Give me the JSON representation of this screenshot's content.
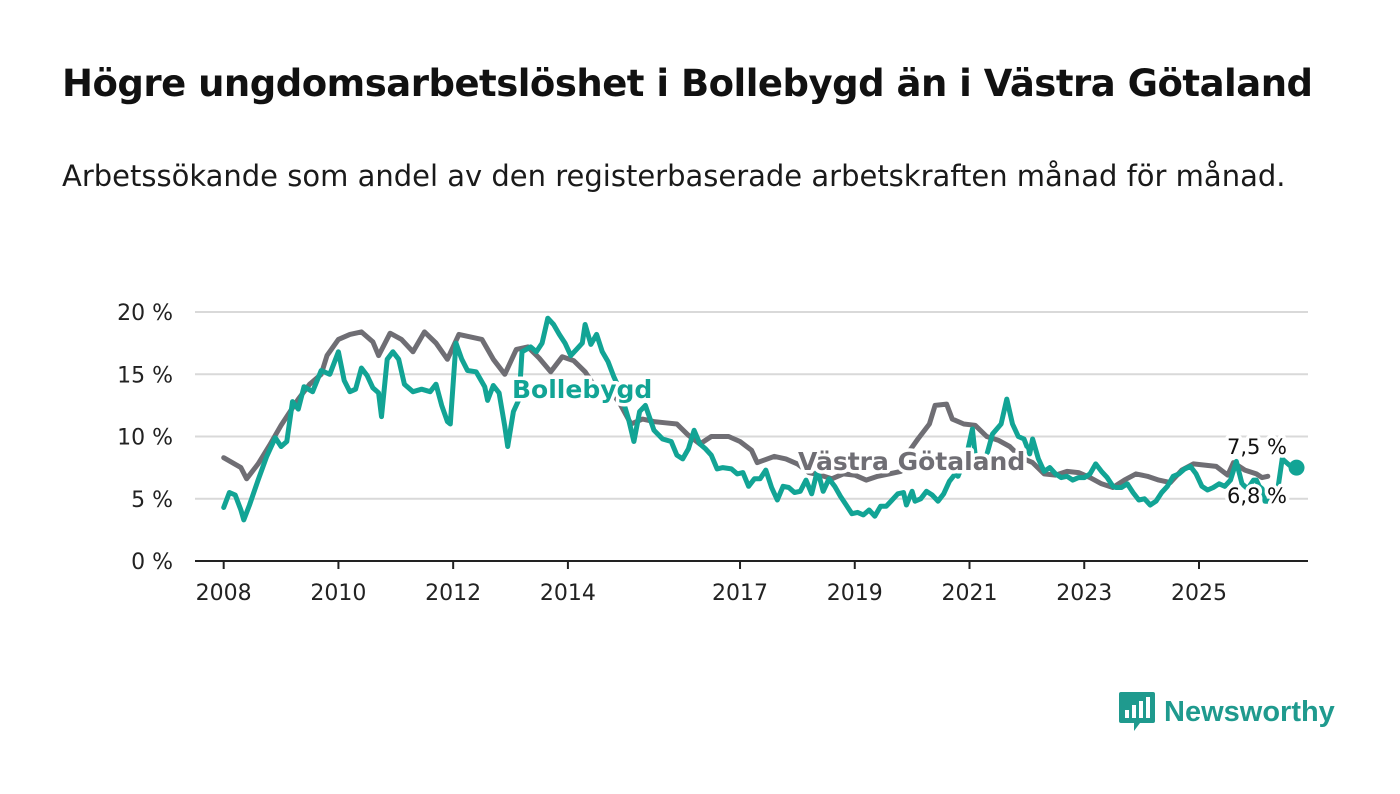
{
  "title": "Högre ungdomsarbetslöshet i Bollebygd än i Västra Götaland",
  "subtitle": "Arbetssökande som andel av den registerbaserade arbetskraften månad för månad.",
  "brand": "Newsworthy",
  "colors": {
    "bollebygd": "#12a495",
    "region": "#6f6e74",
    "grid": "#d9d9d9",
    "brand": "#1f9a8e"
  },
  "chart_data": {
    "type": "line",
    "title": "Högre ungdomsarbetslöshet i Bollebygd än i Västra Götaland",
    "xlabel": "",
    "ylabel": "",
    "xlim": [
      2007.5,
      2026.9
    ],
    "ylim": [
      0,
      20
    ],
    "y_ticks": [
      0,
      5,
      10,
      15,
      20
    ],
    "y_tick_labels": [
      "0 %",
      "5 %",
      "10 %",
      "15 %",
      "20 %"
    ],
    "x_ticks": [
      2008,
      2010,
      2012,
      2014,
      2017,
      2019,
      2021,
      2023,
      2025
    ],
    "x_tick_labels": [
      "2008",
      "2010",
      "2012",
      "2014",
      "2017",
      "2019",
      "2021",
      "2023",
      "2025"
    ],
    "series": [
      {
        "name": "Västra Götaland",
        "end_label": "6,8 %",
        "points": [
          [
            2008.0,
            8.3
          ],
          [
            2008.3,
            7.5
          ],
          [
            2008.4,
            6.6
          ],
          [
            2008.6,
            7.8
          ],
          [
            2008.8,
            9.3
          ],
          [
            2009.0,
            10.9
          ],
          [
            2009.3,
            13.0
          ],
          [
            2009.5,
            14.2
          ],
          [
            2009.7,
            15.0
          ],
          [
            2009.8,
            16.5
          ],
          [
            2010.0,
            17.8
          ],
          [
            2010.2,
            18.2
          ],
          [
            2010.4,
            18.4
          ],
          [
            2010.6,
            17.6
          ],
          [
            2010.7,
            16.5
          ],
          [
            2010.9,
            18.3
          ],
          [
            2011.1,
            17.8
          ],
          [
            2011.3,
            16.8
          ],
          [
            2011.5,
            18.4
          ],
          [
            2011.7,
            17.5
          ],
          [
            2011.9,
            16.2
          ],
          [
            2012.1,
            18.2
          ],
          [
            2012.3,
            18.0
          ],
          [
            2012.5,
            17.8
          ],
          [
            2012.7,
            16.2
          ],
          [
            2012.9,
            15.0
          ],
          [
            2013.1,
            17.0
          ],
          [
            2013.3,
            17.2
          ],
          [
            2013.5,
            16.3
          ],
          [
            2013.7,
            15.2
          ],
          [
            2013.9,
            16.4
          ],
          [
            2014.1,
            16.1
          ],
          [
            2014.3,
            15.2
          ],
          [
            2014.5,
            13.8
          ],
          [
            2014.7,
            13.9
          ],
          [
            2014.9,
            12.7
          ],
          [
            2015.1,
            11.0
          ],
          [
            2015.3,
            11.4
          ],
          [
            2015.5,
            11.2
          ],
          [
            2015.7,
            11.1
          ],
          [
            2015.9,
            11.0
          ],
          [
            2016.1,
            10.1
          ],
          [
            2016.3,
            9.4
          ],
          [
            2016.5,
            10.0
          ],
          [
            2016.8,
            10.0
          ],
          [
            2017.0,
            9.6
          ],
          [
            2017.2,
            8.9
          ],
          [
            2017.3,
            7.9
          ],
          [
            2017.6,
            8.4
          ],
          [
            2017.8,
            8.2
          ],
          [
            2018.0,
            7.8
          ],
          [
            2018.2,
            7.1
          ],
          [
            2018.4,
            6.9
          ],
          [
            2018.6,
            6.6
          ],
          [
            2018.8,
            7.0
          ],
          [
            2019.0,
            6.9
          ],
          [
            2019.2,
            6.5
          ],
          [
            2019.4,
            6.8
          ],
          [
            2019.6,
            7.0
          ],
          [
            2019.8,
            7.2
          ],
          [
            2019.9,
            8.5
          ],
          [
            2020.1,
            9.8
          ],
          [
            2020.3,
            11.0
          ],
          [
            2020.4,
            12.5
          ],
          [
            2020.6,
            12.6
          ],
          [
            2020.7,
            11.4
          ],
          [
            2020.9,
            11.0
          ],
          [
            2021.1,
            10.9
          ],
          [
            2021.3,
            10.0
          ],
          [
            2021.5,
            9.7
          ],
          [
            2021.7,
            9.2
          ],
          [
            2021.9,
            8.3
          ],
          [
            2022.1,
            7.9
          ],
          [
            2022.3,
            7.0
          ],
          [
            2022.5,
            6.9
          ],
          [
            2022.7,
            7.2
          ],
          [
            2022.9,
            7.1
          ],
          [
            2023.1,
            6.7
          ],
          [
            2023.3,
            6.2
          ],
          [
            2023.5,
            5.9
          ],
          [
            2023.7,
            6.5
          ],
          [
            2023.9,
            7.0
          ],
          [
            2024.1,
            6.8
          ],
          [
            2024.3,
            6.5
          ],
          [
            2024.5,
            6.3
          ],
          [
            2024.7,
            7.3
          ],
          [
            2024.9,
            7.8
          ],
          [
            2025.1,
            7.7
          ],
          [
            2025.3,
            7.6
          ],
          [
            2025.5,
            6.9
          ],
          [
            2025.6,
            7.9
          ],
          [
            2025.8,
            7.3
          ],
          [
            2026.0,
            7.0
          ],
          [
            2026.1,
            6.7
          ],
          [
            2026.2,
            6.8
          ]
        ]
      },
      {
        "name": "Bollebygd",
        "end_label": "7,5 %",
        "points": [
          [
            2008.0,
            4.3
          ],
          [
            2008.1,
            5.5
          ],
          [
            2008.2,
            5.3
          ],
          [
            2008.3,
            4.1
          ],
          [
            2008.35,
            3.3
          ],
          [
            2008.45,
            4.5
          ],
          [
            2008.6,
            6.5
          ],
          [
            2008.75,
            8.4
          ],
          [
            2008.9,
            9.9
          ],
          [
            2009.0,
            9.2
          ],
          [
            2009.1,
            9.6
          ],
          [
            2009.2,
            12.8
          ],
          [
            2009.3,
            12.2
          ],
          [
            2009.4,
            14.0
          ],
          [
            2009.55,
            13.6
          ],
          [
            2009.7,
            15.3
          ],
          [
            2009.85,
            15.0
          ],
          [
            2010.0,
            16.8
          ],
          [
            2010.1,
            14.5
          ],
          [
            2010.2,
            13.6
          ],
          [
            2010.3,
            13.8
          ],
          [
            2010.4,
            15.5
          ],
          [
            2010.5,
            14.9
          ],
          [
            2010.6,
            13.9
          ],
          [
            2010.7,
            13.5
          ],
          [
            2010.75,
            11.6
          ],
          [
            2010.85,
            16.2
          ],
          [
            2010.95,
            16.8
          ],
          [
            2011.05,
            16.2
          ],
          [
            2011.15,
            14.2
          ],
          [
            2011.3,
            13.6
          ],
          [
            2011.45,
            13.8
          ],
          [
            2011.6,
            13.6
          ],
          [
            2011.7,
            14.2
          ],
          [
            2011.8,
            12.5
          ],
          [
            2011.9,
            11.2
          ],
          [
            2011.95,
            11.0
          ],
          [
            2012.05,
            17.5
          ],
          [
            2012.15,
            16.2
          ],
          [
            2012.25,
            15.3
          ],
          [
            2012.4,
            15.2
          ],
          [
            2012.55,
            14.0
          ],
          [
            2012.6,
            12.9
          ],
          [
            2012.7,
            14.1
          ],
          [
            2012.8,
            13.5
          ],
          [
            2012.9,
            10.8
          ],
          [
            2012.95,
            9.2
          ],
          [
            2013.05,
            12.0
          ],
          [
            2013.15,
            13.0
          ],
          [
            2013.2,
            16.8
          ],
          [
            2013.35,
            17.2
          ],
          [
            2013.45,
            16.8
          ],
          [
            2013.55,
            17.5
          ],
          [
            2013.65,
            19.5
          ],
          [
            2013.75,
            19.0
          ],
          [
            2013.85,
            18.2
          ],
          [
            2013.95,
            17.5
          ],
          [
            2014.05,
            16.5
          ],
          [
            2014.15,
            17.0
          ],
          [
            2014.25,
            17.5
          ],
          [
            2014.3,
            19.0
          ],
          [
            2014.4,
            17.4
          ],
          [
            2014.5,
            18.2
          ],
          [
            2014.6,
            16.8
          ],
          [
            2014.7,
            16.0
          ],
          [
            2014.8,
            14.8
          ],
          [
            2014.9,
            13.8
          ],
          [
            2015.05,
            11.5
          ],
          [
            2015.15,
            9.6
          ],
          [
            2015.25,
            12.0
          ],
          [
            2015.35,
            12.5
          ],
          [
            2015.5,
            10.5
          ],
          [
            2015.65,
            9.8
          ],
          [
            2015.8,
            9.6
          ],
          [
            2015.9,
            8.5
          ],
          [
            2016.0,
            8.2
          ],
          [
            2016.1,
            9.0
          ],
          [
            2016.2,
            10.5
          ],
          [
            2016.3,
            9.4
          ],
          [
            2016.4,
            9.0
          ],
          [
            2016.5,
            8.5
          ],
          [
            2016.6,
            7.4
          ],
          [
            2016.7,
            7.5
          ],
          [
            2016.85,
            7.4
          ],
          [
            2016.95,
            7.0
          ],
          [
            2017.05,
            7.1
          ],
          [
            2017.15,
            6.0
          ],
          [
            2017.25,
            6.6
          ],
          [
            2017.35,
            6.6
          ],
          [
            2017.45,
            7.3
          ],
          [
            2017.55,
            5.9
          ],
          [
            2017.65,
            4.9
          ],
          [
            2017.75,
            6.0
          ],
          [
            2017.85,
            5.9
          ],
          [
            2017.95,
            5.5
          ],
          [
            2018.05,
            5.6
          ],
          [
            2018.15,
            6.5
          ],
          [
            2018.25,
            5.4
          ],
          [
            2018.35,
            7.3
          ],
          [
            2018.45,
            5.6
          ],
          [
            2018.55,
            6.6
          ],
          [
            2018.65,
            6.0
          ],
          [
            2018.75,
            5.2
          ],
          [
            2018.85,
            4.5
          ],
          [
            2018.95,
            3.8
          ],
          [
            2019.05,
            3.9
          ],
          [
            2019.15,
            3.7
          ],
          [
            2019.25,
            4.1
          ],
          [
            2019.35,
            3.6
          ],
          [
            2019.45,
            4.4
          ],
          [
            2019.55,
            4.4
          ],
          [
            2019.65,
            4.9
          ],
          [
            2019.75,
            5.4
          ],
          [
            2019.85,
            5.5
          ],
          [
            2019.9,
            4.5
          ],
          [
            2020.0,
            5.6
          ],
          [
            2020.05,
            4.8
          ],
          [
            2020.15,
            5.0
          ],
          [
            2020.25,
            5.6
          ],
          [
            2020.35,
            5.3
          ],
          [
            2020.45,
            4.8
          ],
          [
            2020.55,
            5.4
          ],
          [
            2020.65,
            6.4
          ],
          [
            2020.75,
            7.0
          ],
          [
            2020.8,
            6.8
          ],
          [
            2020.95,
            8.5
          ],
          [
            2021.05,
            10.6
          ],
          [
            2021.1,
            8.5
          ],
          [
            2021.2,
            7.8
          ],
          [
            2021.3,
            8.5
          ],
          [
            2021.4,
            10.2
          ],
          [
            2021.55,
            11.0
          ],
          [
            2021.65,
            13.0
          ],
          [
            2021.75,
            11.0
          ],
          [
            2021.85,
            10.0
          ],
          [
            2021.95,
            9.8
          ],
          [
            2022.05,
            8.6
          ],
          [
            2022.1,
            9.8
          ],
          [
            2022.2,
            8.2
          ],
          [
            2022.3,
            7.2
          ],
          [
            2022.4,
            7.5
          ],
          [
            2022.5,
            7.0
          ],
          [
            2022.6,
            6.7
          ],
          [
            2022.7,
            6.8
          ],
          [
            2022.8,
            6.5
          ],
          [
            2022.9,
            6.7
          ],
          [
            2023.0,
            6.7
          ],
          [
            2023.1,
            7.0
          ],
          [
            2023.2,
            7.8
          ],
          [
            2023.3,
            7.2
          ],
          [
            2023.4,
            6.7
          ],
          [
            2023.5,
            6.0
          ],
          [
            2023.55,
            5.9
          ],
          [
            2023.65,
            5.9
          ],
          [
            2023.75,
            6.2
          ],
          [
            2023.85,
            5.5
          ],
          [
            2023.95,
            4.9
          ],
          [
            2024.05,
            5.0
          ],
          [
            2024.15,
            4.5
          ],
          [
            2024.25,
            4.8
          ],
          [
            2024.35,
            5.5
          ],
          [
            2024.45,
            6.0
          ],
          [
            2024.55,
            6.8
          ],
          [
            2024.65,
            7.0
          ],
          [
            2024.75,
            7.4
          ],
          [
            2024.85,
            7.6
          ],
          [
            2024.95,
            7.0
          ],
          [
            2025.05,
            6.0
          ],
          [
            2025.15,
            5.7
          ],
          [
            2025.25,
            5.9
          ],
          [
            2025.35,
            6.2
          ],
          [
            2025.45,
            6.0
          ],
          [
            2025.55,
            6.5
          ],
          [
            2025.65,
            8.0
          ],
          [
            2025.75,
            6.2
          ],
          [
            2025.85,
            5.8
          ],
          [
            2025.95,
            6.5
          ],
          [
            2026.0,
            6.5
          ],
          [
            2026.05,
            6.0
          ],
          [
            2026.1,
            5.8
          ],
          [
            2026.15,
            4.8
          ],
          [
            2026.25,
            4.8
          ],
          [
            2026.35,
            5.0
          ],
          [
            2026.45,
            8.2
          ],
          [
            2026.55,
            7.8
          ],
          [
            2026.6,
            7.6
          ],
          [
            2026.7,
            7.5
          ]
        ]
      }
    ],
    "annotations": [
      "Bollebygd",
      "Västra Götaland"
    ]
  }
}
